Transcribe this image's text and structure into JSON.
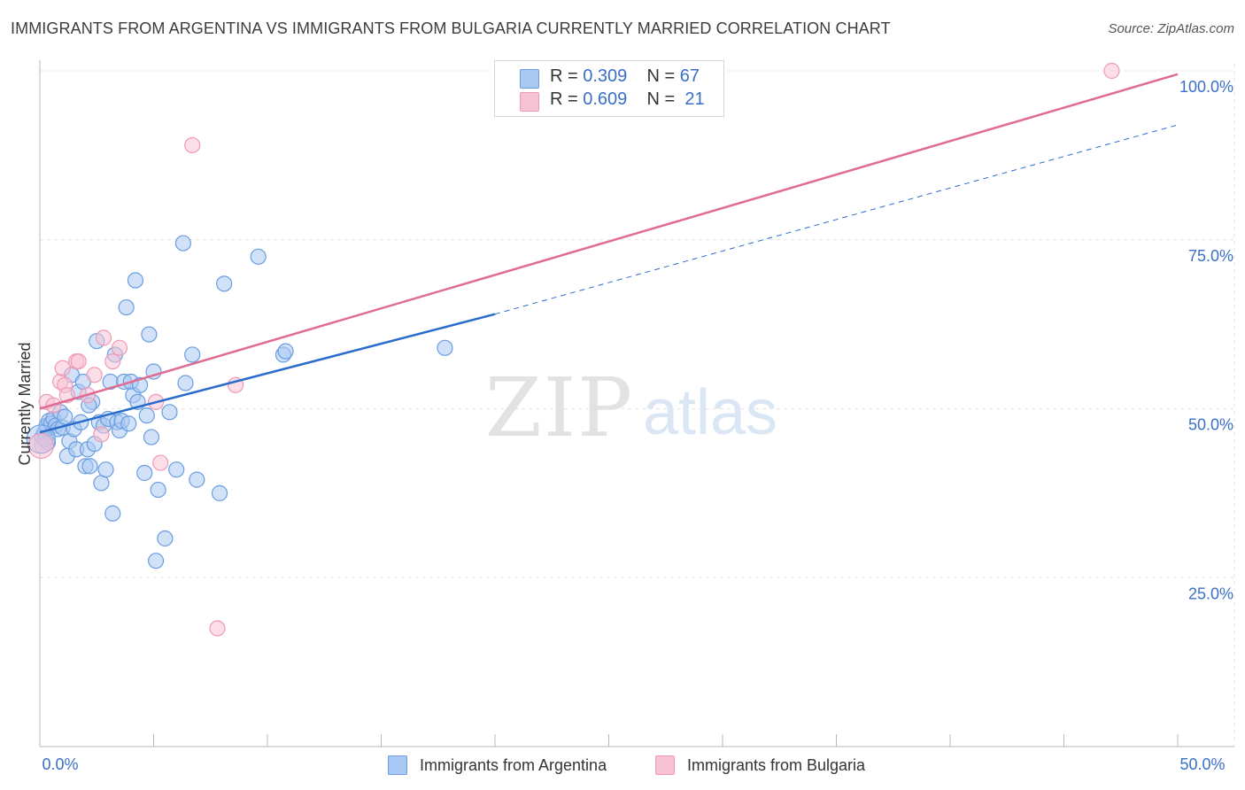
{
  "title": "IMMIGRANTS FROM ARGENTINA VS IMMIGRANTS FROM BULGARIA CURRENTLY MARRIED CORRELATION CHART",
  "source": "Source: ZipAtlas.com",
  "watermark": {
    "zip": "ZIP",
    "atlas": "atlas"
  },
  "legend": {
    "argentina": {
      "r_label": "R =",
      "r_value": "0.309",
      "n_label": "N =",
      "n_value": "67"
    },
    "bulgaria": {
      "r_label": "R =",
      "r_value": "0.609",
      "n_label": "N =",
      "n_value": "21"
    }
  },
  "colors": {
    "argentina_fill": "#a9c8f3",
    "argentina_stroke": "#6a9de0",
    "argentina_line": "#2a6ccc",
    "bulgaria_fill": "#f7c2d3",
    "bulgaria_stroke": "#ee9ab5",
    "bulgaria_line": "#e06c93",
    "axis_label_color": "#3a6fc8",
    "grid": "#e4e4e4"
  },
  "chart_data": {
    "type": "scatter",
    "title": "IMMIGRANTS FROM ARGENTINA VS IMMIGRANTS FROM BULGARIA CURRENTLY MARRIED CORRELATION CHART",
    "xlabel": "",
    "ylabel": "Currently Married",
    "xlim": [
      0,
      50
    ],
    "ylim": [
      0,
      102
    ],
    "x_tick_labels": [
      "0.0%",
      "50.0%"
    ],
    "y_ticks": [
      25,
      50,
      75,
      100
    ],
    "y_tick_labels": [
      "25.0%",
      "50.0%",
      "75.0%",
      "100.0%"
    ],
    "grid": true,
    "legend_position": "top-center",
    "series": [
      {
        "name": "Immigrants from Argentina",
        "r": 0.309,
        "n": 67,
        "trend": {
          "x0": 0,
          "y0": 46.5,
          "x1": 20,
          "y1": 64,
          "dashed_to_x": 50,
          "dashed_to_y": 92
        },
        "points": [
          [
            0.1,
            45.8
          ],
          [
            0.2,
            46.5
          ],
          [
            0.3,
            47.5
          ],
          [
            0.4,
            48.2
          ],
          [
            0.5,
            47.8
          ],
          [
            0.6,
            48.5
          ],
          [
            0.7,
            47.5
          ],
          [
            0.8,
            47.0
          ],
          [
            0.9,
            49.5
          ],
          [
            1.0,
            47.2
          ],
          [
            1.1,
            48.8
          ],
          [
            1.2,
            43.0
          ],
          [
            1.3,
            45.2
          ],
          [
            1.4,
            55.0
          ],
          [
            1.5,
            47.0
          ],
          [
            1.6,
            44.0
          ],
          [
            1.7,
            52.5
          ],
          [
            1.8,
            48.0
          ],
          [
            1.9,
            54.0
          ],
          [
            2.0,
            41.5
          ],
          [
            2.1,
            44.0
          ],
          [
            2.2,
            41.5
          ],
          [
            2.3,
            51.0
          ],
          [
            2.4,
            44.8
          ],
          [
            2.5,
            60.0
          ],
          [
            2.6,
            48.0
          ],
          [
            2.7,
            39.0
          ],
          [
            2.8,
            47.5
          ],
          [
            2.9,
            41.0
          ],
          [
            3.0,
            48.5
          ],
          [
            3.1,
            54.0
          ],
          [
            3.2,
            34.5
          ],
          [
            3.3,
            58.0
          ],
          [
            3.4,
            48.0
          ],
          [
            3.5,
            46.8
          ],
          [
            3.6,
            48.2
          ],
          [
            3.7,
            54.0
          ],
          [
            3.8,
            65.0
          ],
          [
            3.9,
            47.8
          ],
          [
            4.0,
            54.0
          ],
          [
            4.1,
            52.0
          ],
          [
            4.2,
            69.0
          ],
          [
            4.3,
            51.0
          ],
          [
            4.4,
            53.5
          ],
          [
            4.6,
            40.5
          ],
          [
            4.7,
            49.0
          ],
          [
            4.8,
            61.0
          ],
          [
            4.9,
            45.8
          ],
          [
            5.0,
            55.5
          ],
          [
            5.1,
            27.5
          ],
          [
            5.2,
            38.0
          ],
          [
            5.5,
            30.8
          ],
          [
            5.7,
            49.5
          ],
          [
            6.0,
            41.0
          ],
          [
            6.3,
            74.5
          ],
          [
            6.4,
            53.8
          ],
          [
            6.7,
            58.0
          ],
          [
            6.9,
            39.5
          ],
          [
            7.9,
            37.5
          ],
          [
            8.1,
            68.5
          ],
          [
            9.6,
            72.5
          ],
          [
            10.7,
            58.0
          ],
          [
            10.8,
            58.5
          ],
          [
            17.8,
            59.0
          ],
          [
            0.35,
            45.0
          ],
          [
            0.25,
            45.5
          ],
          [
            2.15,
            50.5
          ]
        ]
      },
      {
        "name": "Immigrants from Bulgaria",
        "r": 0.609,
        "n": 21,
        "trend": {
          "x0": 0,
          "y0": 50,
          "x1": 50,
          "y1": 99.5
        },
        "points": [
          [
            0.1,
            44.5
          ],
          [
            0.3,
            51.0
          ],
          [
            0.6,
            50.5
          ],
          [
            0.9,
            54.0
          ],
          [
            1.0,
            56.0
          ],
          [
            1.1,
            53.5
          ],
          [
            1.6,
            57.0
          ],
          [
            1.7,
            57.0
          ],
          [
            2.1,
            52.0
          ],
          [
            2.4,
            55.0
          ],
          [
            2.7,
            46.2
          ],
          [
            2.8,
            60.5
          ],
          [
            3.2,
            57.0
          ],
          [
            3.5,
            59.0
          ],
          [
            5.1,
            51.0
          ],
          [
            5.3,
            42.0
          ],
          [
            6.7,
            89.0
          ],
          [
            7.8,
            17.5
          ],
          [
            8.6,
            53.5
          ],
          [
            47.1,
            100.0
          ],
          [
            1.2,
            52.0
          ]
        ]
      }
    ]
  },
  "bottom_legend": {
    "argentina_label": "Immigrants from Argentina",
    "bulgaria_label": "Immigrants from Bulgaria"
  }
}
